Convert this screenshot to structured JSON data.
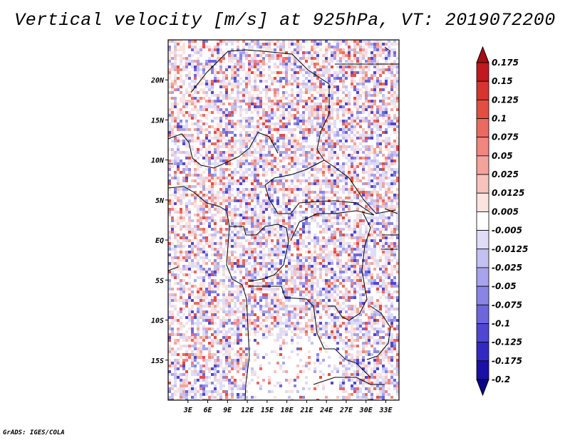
{
  "title": "Vertical velocity [m/s] at 925hPa, VT: 2019072200",
  "footer": "GrADS: IGES/COLA",
  "map": {
    "lon_range": [
      0,
      35
    ],
    "lat_range": [
      -20,
      25
    ],
    "lat_labels": [
      {
        "lat": 20,
        "text": "20N"
      },
      {
        "lat": 15,
        "text": "15N"
      },
      {
        "lat": 10,
        "text": "10N"
      },
      {
        "lat": 5,
        "text": "5N"
      },
      {
        "lat": 0,
        "text": "EQ"
      },
      {
        "lat": -5,
        "text": "5S"
      },
      {
        "lat": -10,
        "text": "10S"
      },
      {
        "lat": -15,
        "text": "15S"
      }
    ],
    "lon_labels": [
      {
        "lon": 3,
        "text": "3E"
      },
      {
        "lon": 6,
        "text": "6E"
      },
      {
        "lon": 9,
        "text": "9E"
      },
      {
        "lon": 12,
        "text": "12E"
      },
      {
        "lon": 15,
        "text": "15E"
      },
      {
        "lon": 18,
        "text": "18E"
      },
      {
        "lon": 21,
        "text": "21E"
      },
      {
        "lon": 24,
        "text": "24E"
      },
      {
        "lon": 27,
        "text": "27E"
      },
      {
        "lon": 30,
        "text": "30E"
      },
      {
        "lon": 33,
        "text": "33E"
      }
    ]
  },
  "colorbar": {
    "levels": [
      "0.175",
      "0.15",
      "0.125",
      "0.1",
      "0.075",
      "0.05",
      "0.025",
      "0.0125",
      "0.005",
      "-0.005",
      "-0.0125",
      "-0.025",
      "-0.05",
      "-0.075",
      "-0.1",
      "-0.125",
      "-0.175",
      "-0.2"
    ],
    "colors": [
      "#a50f15",
      "#c1191f",
      "#d7342f",
      "#e44d44",
      "#eb6a5f",
      "#f0867d",
      "#f4a39b",
      "#f8c3bd",
      "#fbe3e0",
      "#ffffff",
      "#dedcf7",
      "#c3c0f2",
      "#a7a3ec",
      "#8a85e4",
      "#6d66dc",
      "#4f47d2",
      "#3229c5",
      "#1a0fa8",
      "#0b0582"
    ]
  }
}
